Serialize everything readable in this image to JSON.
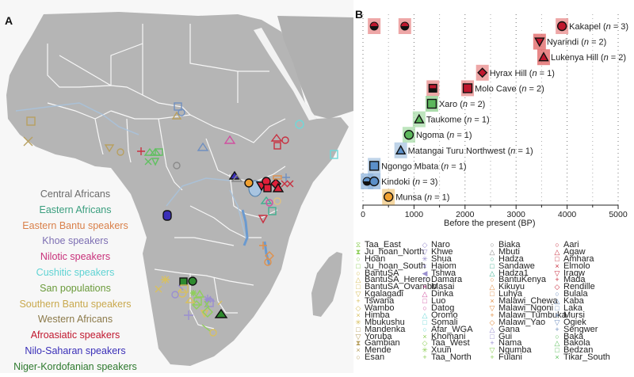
{
  "panels": {
    "a_label": "A",
    "b_label": "B"
  },
  "map_legend": [
    {
      "label": "Central Africans",
      "color": "#6b6b6b"
    },
    {
      "label": "Eastern Africans",
      "color": "#3a9e7e"
    },
    {
      "label": "Eastern Bantu speakers",
      "color": "#d9804a"
    },
    {
      "label": "Khoe speakers",
      "color": "#7d6fb3"
    },
    {
      "label": "Nilotic speakers",
      "color": "#c8307a"
    },
    {
      "label": "Cushitic speakers",
      "color": "#5fd3d3"
    },
    {
      "label": "San populations",
      "color": "#6a9a3a"
    },
    {
      "label": "Southern Bantu speakers",
      "color": "#c9a94e"
    },
    {
      "label": "Western Africans",
      "color": "#8c7a4a"
    },
    {
      "label": "Afroasiatic speakers",
      "color": "#c0172e"
    },
    {
      "label": "Nilo-Saharan speakers",
      "color": "#3a2fb8"
    },
    {
      "label": "Niger-Kordofanian speakers",
      "color": "#2e7a2e"
    }
  ],
  "chart_data": {
    "type": "scatter",
    "title": "",
    "xlabel": "Before the present (BP)",
    "ylabel": "",
    "xlim": [
      0,
      5000
    ],
    "xticks": [
      0,
      1000,
      2000,
      3000,
      4000,
      5000
    ],
    "grid": "vertical dotted at 500 intervals",
    "legend_position": "inline labels",
    "rows": [
      {
        "label": "Kakapel",
        "n": 3,
        "points": [
          {
            "x": 220,
            "shape": "half-circle",
            "color": "#c0172e"
          },
          {
            "x": 820,
            "shape": "half-circle",
            "color": "#c0172e"
          },
          {
            "x": 3900,
            "shape": "circle",
            "color": "#c0172e"
          }
        ],
        "band_color": "#e88a8a"
      },
      {
        "label": "Nyarindi",
        "n": 2,
        "points": [
          {
            "x": 3460,
            "shape": "triangle-down",
            "color": "#c0172e"
          }
        ],
        "band_color": "#e06060"
      },
      {
        "label": "Lukenya Hill",
        "n": 2,
        "points": [
          {
            "x": 3540,
            "shape": "triangle",
            "color": "#c0172e"
          }
        ],
        "band_color": "#e06060"
      },
      {
        "label": "Hyrax Hill",
        "n": 1,
        "points": [
          {
            "x": 2340,
            "shape": "diamond",
            "color": "#c0172e"
          }
        ],
        "band_color": "#e88a8a"
      },
      {
        "label": "Molo Cave",
        "n": 2,
        "points": [
          {
            "x": 1370,
            "shape": "half-square",
            "color": "#c0172e"
          },
          {
            "x": 2050,
            "shape": "square",
            "color": "#c0172e"
          }
        ],
        "band_color": "#e88a8a"
      },
      {
        "label": "Xaro",
        "n": 2,
        "points": [
          {
            "x": 1350,
            "shape": "square",
            "color": "#5cb85c"
          }
        ],
        "band_color": "#8fd08f"
      },
      {
        "label": "Taukome",
        "n": 1,
        "points": [
          {
            "x": 1100,
            "shape": "triangle",
            "color": "#5cb85c"
          }
        ],
        "band_color": "#a8dca8"
      },
      {
        "label": "Ngoma",
        "n": 1,
        "points": [
          {
            "x": 900,
            "shape": "circle",
            "color": "#5cb85c"
          }
        ],
        "band_color": "#a8dca8"
      },
      {
        "label": "Matangai Turu Northwest",
        "n": 1,
        "points": [
          {
            "x": 740,
            "shape": "triangle",
            "color": "#5b8fc8"
          }
        ],
        "band_color": "#a8c4e0"
      },
      {
        "label": "Ngongo Mbata",
        "n": 1,
        "points": [
          {
            "x": 220,
            "shape": "square",
            "color": "#5b8fc8"
          }
        ],
        "band_color": "#a8c4e0"
      },
      {
        "label": "Kindoki",
        "n": 3,
        "points": [
          {
            "x": 80,
            "shape": "half-circle",
            "color": "#5b8fc8"
          },
          {
            "x": 220,
            "shape": "circle",
            "color": "#5b8fc8"
          }
        ],
        "band_color": "#8fb4dc"
      },
      {
        "label": "Munsa",
        "n": 1,
        "points": [
          {
            "x": 500,
            "shape": "circle",
            "color": "#f0a030"
          }
        ],
        "band_color": "#f0c880"
      }
    ]
  },
  "population_legend": [
    [
      {
        "label": "Taa_East",
        "sym": "⧖",
        "color": "#8fcf5a"
      },
      {
        "label": "Ju_hoan_North",
        "sym": "⧗",
        "color": "#8fcf5a"
      },
      {
        "label": "Hoan",
        "sym": "○",
        "color": "#8fcf5a"
      },
      {
        "label": "Ju_hoan_South",
        "sym": "□",
        "color": "#8fcf5a"
      },
      {
        "label": "BantuSA",
        "sym": "○",
        "color": "#d8c060"
      },
      {
        "label": "BantuSA_Herero",
        "sym": "△",
        "color": "#d8c060"
      },
      {
        "label": "BantuSA_Ovambo",
        "sym": "□",
        "color": "#d8c060"
      },
      {
        "label": "Kgalagadi",
        "sym": "▽",
        "color": "#d8c060"
      },
      {
        "label": "Tswana",
        "sym": "+",
        "color": "#d8c060"
      },
      {
        "label": "Wambo",
        "sym": "◇",
        "color": "#d8c060"
      },
      {
        "label": "Himba",
        "sym": "×",
        "color": "#d8c060"
      },
      {
        "label": "Mbukushu",
        "sym": "✳",
        "color": "#d8c060"
      },
      {
        "label": "Mandenka",
        "sym": "□",
        "color": "#b8a060"
      },
      {
        "label": "Yoruba",
        "sym": "▽",
        "color": "#b8a060"
      },
      {
        "label": "Gambian",
        "sym": "⧗",
        "color": "#b8a060"
      },
      {
        "label": "Mende",
        "sym": "×",
        "color": "#b8a060"
      },
      {
        "label": "Esan",
        "sym": "○",
        "color": "#b8a060"
      }
    ],
    [
      {
        "label": "Naro",
        "sym": "◇",
        "color": "#9a8fd0"
      },
      {
        "label": "Khwe",
        "sym": "▽",
        "color": "#9a8fd0"
      },
      {
        "label": "Shua",
        "sym": "✳",
        "color": "#9a8fd0"
      },
      {
        "label": "Haiom",
        "sym": "×",
        "color": "#9a8fd0"
      },
      {
        "label": "Tshwa",
        "sym": "◀",
        "color": "#9a8fd0"
      },
      {
        "label": "Damara",
        "sym": "○",
        "color": "#9a8fd0"
      },
      {
        "label": "Masai",
        "sym": "×",
        "color": "#d050a0"
      },
      {
        "label": "Dinka",
        "sym": "△",
        "color": "#d050a0"
      },
      {
        "label": "Luo",
        "sym": "□",
        "color": "#d050a0"
      },
      {
        "label": "Datog",
        "sym": "○",
        "color": "#d050a0"
      },
      {
        "label": "Oromo",
        "sym": "△",
        "color": "#70d8d8"
      },
      {
        "label": "Somali",
        "sym": "□",
        "color": "#70d8d8"
      },
      {
        "label": "Afar_WGA",
        "sym": "○",
        "color": "#70d8d8"
      },
      {
        "label": "Khomani",
        "sym": "×",
        "color": "#8fcf5a"
      },
      {
        "label": "Taa_West",
        "sym": "◇",
        "color": "#8fcf5a"
      },
      {
        "label": "Xuun",
        "sym": "✳",
        "color": "#8fcf5a"
      },
      {
        "label": "Taa_North",
        "sym": "+",
        "color": "#8fcf5a"
      }
    ],
    [
      {
        "label": "Biaka",
        "sym": "○",
        "color": "#8a8a8a"
      },
      {
        "label": "Mbuti",
        "sym": "△",
        "color": "#8a8a8a"
      },
      {
        "label": "Hadza",
        "sym": "○",
        "color": "#40b090"
      },
      {
        "label": "Sandawe",
        "sym": "□",
        "color": "#40b090"
      },
      {
        "label": "Hadza1",
        "sym": "△",
        "color": "#40b090"
      },
      {
        "label": "BantuKenya",
        "sym": "○",
        "color": "#e0904a"
      },
      {
        "label": "Kikuyu",
        "sym": "△",
        "color": "#e0904a"
      },
      {
        "label": "Luhya",
        "sym": "□",
        "color": "#e0904a"
      },
      {
        "label": "Malawi_Chewa",
        "sym": "×",
        "color": "#e0904a"
      },
      {
        "label": "Malawi_Ngoni",
        "sym": "▽",
        "color": "#e0904a"
      },
      {
        "label": "Malawi_Tumbuka",
        "sym": "+",
        "color": "#e0904a"
      },
      {
        "label": "Malawi_Yao",
        "sym": "◇",
        "color": "#e0904a"
      },
      {
        "label": "Gana",
        "sym": "△",
        "color": "#9a8fd0"
      },
      {
        "label": "Gui",
        "sym": "□",
        "color": "#9a8fd0"
      },
      {
        "label": "Nama",
        "sym": "+",
        "color": "#9a8fd0"
      },
      {
        "label": "Ngumba",
        "sym": "▽",
        "color": "#8fcf5a"
      },
      {
        "label": "Fulani",
        "sym": "+",
        "color": "#8fcf5a"
      }
    ],
    [
      {
        "label": "Aari",
        "sym": "○",
        "color": "#c83040"
      },
      {
        "label": "Agaw",
        "sym": "△",
        "color": "#c83040"
      },
      {
        "label": "Amhara",
        "sym": "□",
        "color": "#c83040"
      },
      {
        "label": "Elmolo",
        "sym": "×",
        "color": "#c83040"
      },
      {
        "label": "Iraqw",
        "sym": "▽",
        "color": "#c83040"
      },
      {
        "label": "Mada",
        "sym": "+",
        "color": "#c83040"
      },
      {
        "label": "Rendille",
        "sym": "◇",
        "color": "#c83040"
      },
      {
        "label": "Bulala",
        "sym": "○",
        "color": "#7090c0"
      },
      {
        "label": "Kaba",
        "sym": "△",
        "color": "#7090c0"
      },
      {
        "label": "Laka",
        "sym": "□",
        "color": "#7090c0"
      },
      {
        "label": "Mursi",
        "sym": "×",
        "color": "#7090c0"
      },
      {
        "label": "Ogiek",
        "sym": "▽",
        "color": "#7090c0"
      },
      {
        "label": "Sengwer",
        "sym": "+",
        "color": "#7090c0"
      },
      {
        "label": "Baka",
        "sym": "○",
        "color": "#60c060"
      },
      {
        "label": "Bakola",
        "sym": "△",
        "color": "#60c060"
      },
      {
        "label": "Bedzan",
        "sym": "□",
        "color": "#60c060"
      },
      {
        "label": "Tikar_South",
        "sym": "×",
        "color": "#60c060"
      }
    ]
  ]
}
